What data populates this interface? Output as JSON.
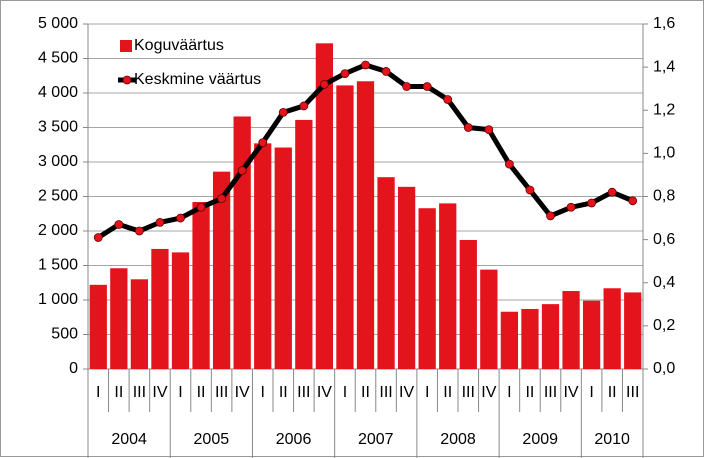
{
  "chart_data": {
    "type": "bar_line",
    "categories": [
      "I",
      "II",
      "III",
      "IV",
      "I",
      "II",
      "III",
      "IV",
      "I",
      "II",
      "III",
      "IV",
      "I",
      "II",
      "III",
      "IV",
      "I",
      "II",
      "III",
      "IV",
      "I",
      "II",
      "III",
      "IV",
      "I",
      "II",
      "III"
    ],
    "category_groups": [
      "2004",
      "2005",
      "2006",
      "2007",
      "2008",
      "2009",
      "2010"
    ],
    "series": [
      {
        "name": "Koguväärtus",
        "type": "bar",
        "color": "#e3141b",
        "axis": "y",
        "values": [
          1220,
          1460,
          1300,
          1740,
          1690,
          2420,
          2860,
          3660,
          3270,
          3210,
          3610,
          4720,
          4110,
          4170,
          2780,
          2640,
          2330,
          2400,
          1870,
          1440,
          830,
          870,
          940,
          1130,
          990,
          1170,
          1110
        ]
      },
      {
        "name": "Keskmine väärtus",
        "type": "line",
        "color": "#000000",
        "marker_color": "#e3141b",
        "axis": "y2",
        "values": [
          0.61,
          0.67,
          0.64,
          0.68,
          0.7,
          0.75,
          0.79,
          0.92,
          1.05,
          1.19,
          1.22,
          1.32,
          1.37,
          1.41,
          1.38,
          1.31,
          1.31,
          1.25,
          1.12,
          1.11,
          0.95,
          0.83,
          0.71,
          0.75,
          0.77,
          0.82,
          0.78
        ]
      }
    ],
    "ylim": [
      0,
      5000
    ],
    "yticks": [
      {
        "value": 0,
        "label": "0"
      },
      {
        "value": 500,
        "label": "500"
      },
      {
        "value": 1000,
        "label": "1 000"
      },
      {
        "value": 1500,
        "label": "1 500"
      },
      {
        "value": 2000,
        "label": "2 000"
      },
      {
        "value": 2500,
        "label": "2 500"
      },
      {
        "value": 3000,
        "label": "3 000"
      },
      {
        "value": 3500,
        "label": "3 500"
      },
      {
        "value": 4000,
        "label": "4 000"
      },
      {
        "value": 4500,
        "label": "4 500"
      },
      {
        "value": 5000,
        "label": "5 000"
      }
    ],
    "y2lim": [
      0,
      1.6
    ],
    "y2ticks": [
      {
        "value": 0,
        "label": "0,0"
      },
      {
        "value": 0.2,
        "label": "0,2"
      },
      {
        "value": 0.4,
        "label": "0,4"
      },
      {
        "value": 0.6,
        "label": "0,6"
      },
      {
        "value": 0.8,
        "label": "0,8"
      },
      {
        "value": 1.0,
        "label": "1,0"
      },
      {
        "value": 1.2,
        "label": "1,2"
      },
      {
        "value": 1.4,
        "label": "1,4"
      },
      {
        "value": 1.6,
        "label": "1,6"
      }
    ],
    "grid": true,
    "legend": "upper-left"
  }
}
